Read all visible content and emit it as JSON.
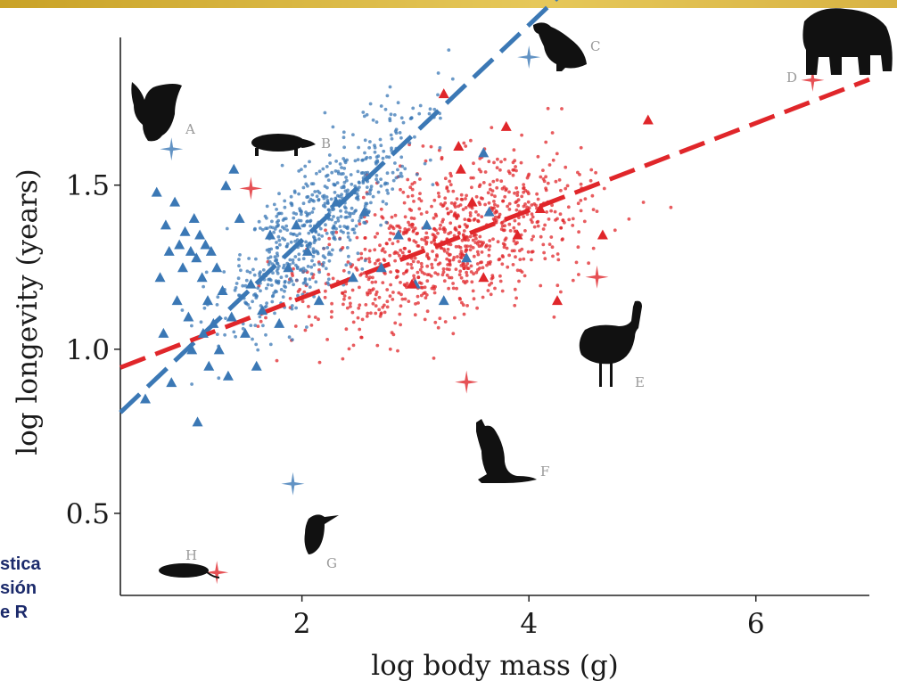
{
  "chart_data": {
    "type": "scatter",
    "xlabel": "log body mass (g)",
    "ylabel": "log longevity (years)",
    "xlim": [
      0.4,
      7.0
    ],
    "ylim": [
      0.25,
      1.95
    ],
    "xticks": [
      2,
      4,
      6
    ],
    "yticks": [
      0.5,
      1.0,
      1.5
    ],
    "grid": false,
    "colors": {
      "blue": "#3b78b5",
      "red": "#e0262a"
    },
    "series": [
      {
        "color": "#3b78b5",
        "marker": "triangle",
        "points": [
          [
            0.62,
            0.85
          ],
          [
            0.72,
            1.48
          ],
          [
            0.75,
            1.22
          ],
          [
            0.78,
            1.05
          ],
          [
            0.8,
            1.38
          ],
          [
            0.83,
            1.3
          ],
          [
            0.85,
            0.9
          ],
          [
            0.88,
            1.45
          ],
          [
            0.9,
            1.15
          ],
          [
            0.92,
            1.32
          ],
          [
            0.95,
            1.25
          ],
          [
            0.97,
            1.36
          ],
          [
            1.0,
            1.1
          ],
          [
            1.02,
            1.3
          ],
          [
            1.03,
            1.0
          ],
          [
            1.05,
            1.4
          ],
          [
            1.07,
            1.28
          ],
          [
            1.08,
            0.78
          ],
          [
            1.1,
            1.35
          ],
          [
            1.12,
            1.22
          ],
          [
            1.13,
            1.05
          ],
          [
            1.15,
            1.32
          ],
          [
            1.17,
            1.15
          ],
          [
            1.18,
            0.95
          ],
          [
            1.2,
            1.3
          ],
          [
            1.22,
            1.08
          ],
          [
            1.25,
            1.25
          ],
          [
            1.27,
            1.0
          ],
          [
            1.3,
            1.18
          ],
          [
            1.33,
            1.5
          ],
          [
            1.35,
            0.92
          ],
          [
            1.38,
            1.1
          ],
          [
            1.4,
            1.55
          ],
          [
            1.45,
            1.4
          ],
          [
            1.5,
            1.05
          ],
          [
            1.55,
            1.2
          ],
          [
            1.6,
            0.95
          ],
          [
            1.65,
            1.12
          ],
          [
            1.72,
            1.35
          ],
          [
            1.8,
            1.08
          ],
          [
            1.88,
            1.25
          ],
          [
            1.95,
            1.38
          ],
          [
            2.05,
            1.3
          ],
          [
            2.15,
            1.15
          ],
          [
            2.3,
            1.45
          ],
          [
            2.45,
            1.22
          ],
          [
            2.55,
            1.42
          ],
          [
            2.7,
            1.25
          ],
          [
            2.85,
            1.35
          ],
          [
            3.0,
            1.2
          ],
          [
            3.1,
            1.38
          ],
          [
            3.25,
            1.15
          ],
          [
            3.45,
            1.28
          ],
          [
            3.6,
            1.6
          ],
          [
            3.65,
            1.42
          ]
        ]
      },
      {
        "color": "#e0262a",
        "marker": "triangle",
        "points": [
          [
            3.25,
            1.78
          ],
          [
            3.38,
            1.62
          ],
          [
            3.4,
            1.55
          ],
          [
            3.5,
            1.45
          ],
          [
            3.6,
            1.22
          ],
          [
            3.8,
            1.68
          ],
          [
            3.9,
            1.35
          ],
          [
            4.1,
            1.43
          ],
          [
            4.25,
            1.15
          ],
          [
            4.65,
            1.35
          ],
          [
            5.05,
            1.7
          ],
          [
            2.97,
            1.2
          ]
        ]
      },
      {
        "color": "#3b78b5",
        "marker": "star",
        "points": [
          [
            0.85,
            1.61
          ],
          [
            4.0,
            1.89
          ],
          [
            1.92,
            0.59
          ]
        ]
      },
      {
        "color": "#e0262a",
        "marker": "star",
        "points": [
          [
            1.55,
            1.49
          ],
          [
            6.5,
            1.82
          ],
          [
            4.6,
            1.22
          ],
          [
            3.45,
            0.9
          ],
          [
            1.25,
            0.32
          ]
        ]
      }
    ],
    "fit_lines": [
      {
        "color": "#3b78b5",
        "style": "dashed",
        "slope": 0.328,
        "intercept": 0.676
      },
      {
        "color": "#e0262a",
        "style": "dashed",
        "slope": 0.133,
        "intercept": 0.891
      }
    ],
    "annotations": [
      "A",
      "B",
      "C",
      "D",
      "E",
      "F",
      "G",
      "H"
    ]
  },
  "page_text": [
    "stica",
    "sión",
    "e R"
  ]
}
